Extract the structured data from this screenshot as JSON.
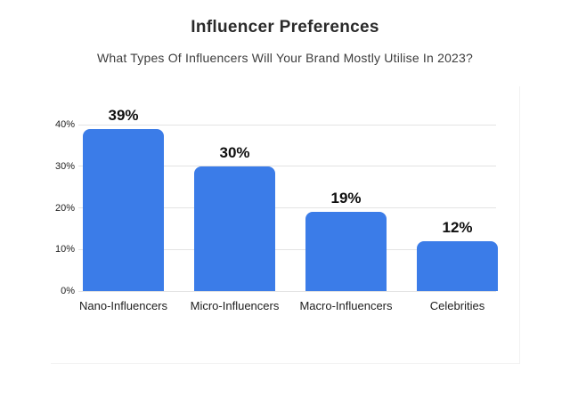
{
  "header": {
    "title": "Influencer Preferences",
    "subtitle": "What Types Of Influencers Will Your Brand Mostly Utilise In 2023?"
  },
  "chart_data": {
    "type": "bar",
    "title": "Influencer Preferences",
    "subtitle": "What Types Of Influencers Will Your Brand Mostly Utilise In 2023?",
    "categories": [
      "Nano-Influencers",
      "Micro-Influencers",
      "Macro-Influencers",
      "Celebrities"
    ],
    "values": [
      39,
      30,
      19,
      12
    ],
    "value_labels": [
      "39%",
      "30%",
      "19%",
      "12%"
    ],
    "ylabel": "",
    "xlabel": "",
    "ylim": [
      0,
      40
    ],
    "yticks": [
      {
        "value": 0,
        "label": "0%"
      },
      {
        "value": 10,
        "label": "10%"
      },
      {
        "value": 20,
        "label": "20%"
      },
      {
        "value": 30,
        "label": "30%"
      },
      {
        "value": 40,
        "label": "40%"
      }
    ],
    "grid": true,
    "legend_position": "none",
    "bar_color": "#3b7ce8",
    "gridline_color": "#e3e3e3"
  }
}
